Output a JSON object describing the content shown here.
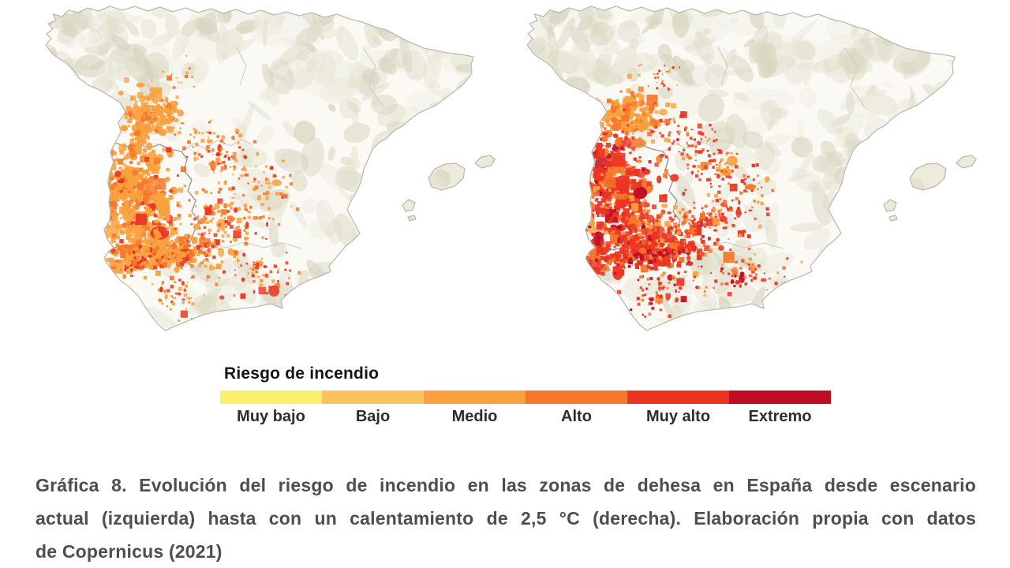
{
  "figure": {
    "legend": {
      "title": "Riesgo de incendio",
      "items": [
        {
          "id": "muy_bajo",
          "label": "Muy bajo",
          "color": "#FAF06B"
        },
        {
          "id": "bajo",
          "label": "Bajo",
          "color": "#FBC35F"
        },
        {
          "id": "medio",
          "label": "Medio",
          "color": "#F9A13E"
        },
        {
          "id": "alto",
          "label": "Alto",
          "color": "#F6782B"
        },
        {
          "id": "muy_alto",
          "label": "Muy alto",
          "color": "#EC3423"
        },
        {
          "id": "extremo",
          "label": "Extremo",
          "color": "#BE0D24"
        }
      ]
    },
    "caption_lines": [
      "Gráfica 8. Evolución del riesgo de incendio en las zonas de dehesa en España desde escenario",
      "actual (izquierda) hasta con un calentamiento de 2,5 °C (derecha). Elaboración propia con datos",
      "de Copernicus (2021)"
    ],
    "map_style": {
      "land_fill": "#FAF9F4",
      "terrain_tones": [
        "#E9E7D7",
        "#DFDCC8",
        "#D6D3BD"
      ],
      "coast_stroke": "#BCBBB0",
      "region_boundary": "#9C9B93",
      "faint_boundary": "#D0CEC1",
      "island_fill": "#EDEBDD"
    }
  }
}
